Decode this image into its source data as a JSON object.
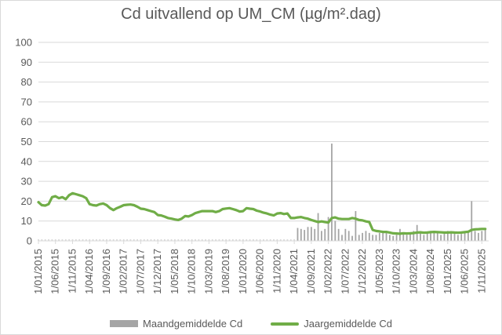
{
  "chart_data": {
    "type": "bar",
    "title": "Cd uitvallend op UM_CM (µg/m².dag)",
    "ylim": [
      0,
      100
    ],
    "y_ticks": [
      0,
      10,
      20,
      30,
      40,
      50,
      60,
      70,
      80,
      90,
      100
    ],
    "x_start": "2015-01",
    "x_end": "2026-01",
    "x_tick_labels": [
      "1/01/2015",
      "1/06/2015",
      "1/11/2015",
      "1/04/2016",
      "1/09/2016",
      "1/02/2017",
      "1/07/2017",
      "1/12/2017",
      "1/05/2018",
      "1/10/2018",
      "1/03/2019",
      "1/08/2019",
      "1/01/2020",
      "1/06/2020",
      "1/11/2020",
      "1/04/2021",
      "1/09/2021",
      "1/02/2022",
      "1/07/2022",
      "1/12/2022",
      "1/05/2023",
      "1/10/2023",
      "1/03/2024",
      "1/08/2024",
      "1/01/2025",
      "1/06/2025",
      "1/11/2025"
    ],
    "grid": true,
    "legend_position": "bottom",
    "series": [
      {
        "name": "Maandgemiddelde Cd",
        "type": "bar",
        "color": "#a5a5a5",
        "points": [
          [
            "2021-05",
            6.5
          ],
          [
            "2021-06",
            6
          ],
          [
            "2021-07",
            5.5
          ],
          [
            "2021-08",
            7
          ],
          [
            "2021-09",
            7
          ],
          [
            "2021-10",
            6
          ],
          [
            "2021-11",
            14
          ],
          [
            "2021-12",
            5
          ],
          [
            "2022-01",
            6
          ],
          [
            "2022-02",
            12
          ],
          [
            "2022-03",
            49
          ],
          [
            "2022-04",
            10
          ],
          [
            "2022-05",
            6
          ],
          [
            "2022-06",
            3
          ],
          [
            "2022-07",
            6
          ],
          [
            "2022-08",
            5
          ],
          [
            "2022-09",
            2.5
          ],
          [
            "2022-10",
            15
          ],
          [
            "2022-11",
            3
          ],
          [
            "2022-12",
            4
          ],
          [
            "2023-01",
            5
          ],
          [
            "2023-02",
            4
          ],
          [
            "2023-03",
            3
          ],
          [
            "2023-04",
            3
          ],
          [
            "2023-05",
            4
          ],
          [
            "2023-06",
            4.5
          ],
          [
            "2023-07",
            4
          ],
          [
            "2023-08",
            3
          ],
          [
            "2023-09",
            2.5
          ],
          [
            "2023-10",
            3
          ],
          [
            "2023-11",
            6
          ],
          [
            "2023-12",
            3.5
          ],
          [
            "2024-01",
            3
          ],
          [
            "2024-02",
            4
          ],
          [
            "2024-03",
            5
          ],
          [
            "2024-04",
            8
          ],
          [
            "2024-05",
            4
          ],
          [
            "2024-06",
            3
          ],
          [
            "2024-07",
            4
          ],
          [
            "2024-08",
            5
          ],
          [
            "2024-09",
            5
          ],
          [
            "2024-10",
            4
          ],
          [
            "2024-11",
            3
          ],
          [
            "2024-12",
            4
          ],
          [
            "2025-01",
            5
          ],
          [
            "2025-02",
            4
          ],
          [
            "2025-03",
            4
          ],
          [
            "2025-04",
            3
          ],
          [
            "2025-05",
            3.5
          ],
          [
            "2025-06",
            4
          ],
          [
            "2025-07",
            4
          ],
          [
            "2025-08",
            20
          ],
          [
            "2025-09",
            5
          ],
          [
            "2025-10",
            4
          ],
          [
            "2025-11",
            5
          ],
          [
            "2025-12",
            6
          ]
        ]
      },
      {
        "name": "Jaargemiddelde Cd",
        "type": "line",
        "color": "#70ad47",
        "points": [
          [
            "2015-01",
            19.5
          ],
          [
            "2015-02",
            18
          ],
          [
            "2015-03",
            17.8
          ],
          [
            "2015-04",
            18.5
          ],
          [
            "2015-05",
            22
          ],
          [
            "2015-06",
            22.5
          ],
          [
            "2015-07",
            21.5
          ],
          [
            "2015-08",
            22
          ],
          [
            "2015-09",
            21
          ],
          [
            "2015-10",
            23
          ],
          [
            "2015-11",
            24
          ],
          [
            "2015-12",
            23.5
          ],
          [
            "2016-01",
            23
          ],
          [
            "2016-02",
            22.5
          ],
          [
            "2016-03",
            21.5
          ],
          [
            "2016-04",
            18.5
          ],
          [
            "2016-05",
            18
          ],
          [
            "2016-06",
            17.8
          ],
          [
            "2016-07",
            18.5
          ],
          [
            "2016-08",
            18.8
          ],
          [
            "2016-09",
            18
          ],
          [
            "2016-10",
            16.5
          ],
          [
            "2016-11",
            15.5
          ],
          [
            "2016-12",
            16.5
          ],
          [
            "2017-01",
            17.2
          ],
          [
            "2017-02",
            18
          ],
          [
            "2017-03",
            18.2
          ],
          [
            "2017-04",
            18.3
          ],
          [
            "2017-05",
            18
          ],
          [
            "2017-06",
            17.2
          ],
          [
            "2017-07",
            16.2
          ],
          [
            "2017-08",
            16
          ],
          [
            "2017-09",
            15.5
          ],
          [
            "2017-10",
            15
          ],
          [
            "2017-11",
            14.5
          ],
          [
            "2017-12",
            13
          ],
          [
            "2018-01",
            12.8
          ],
          [
            "2018-02",
            12.2
          ],
          [
            "2018-03",
            11.5
          ],
          [
            "2018-04",
            11.2
          ],
          [
            "2018-05",
            10.8
          ],
          [
            "2018-06",
            10.5
          ],
          [
            "2018-07",
            11.2
          ],
          [
            "2018-08",
            12.5
          ],
          [
            "2018-09",
            12.3
          ],
          [
            "2018-10",
            13
          ],
          [
            "2018-11",
            14
          ],
          [
            "2018-12",
            14.5
          ],
          [
            "2019-01",
            15
          ],
          [
            "2019-02",
            15
          ],
          [
            "2019-03",
            15
          ],
          [
            "2019-04",
            15
          ],
          [
            "2019-05",
            14.5
          ],
          [
            "2019-06",
            15
          ],
          [
            "2019-07",
            16
          ],
          [
            "2019-08",
            16.3
          ],
          [
            "2019-09",
            16.5
          ],
          [
            "2019-10",
            16
          ],
          [
            "2019-11",
            15.5
          ],
          [
            "2019-12",
            14.8
          ],
          [
            "2020-01",
            15
          ],
          [
            "2020-02",
            16.5
          ],
          [
            "2020-03",
            16.2
          ],
          [
            "2020-04",
            16
          ],
          [
            "2020-05",
            15.2
          ],
          [
            "2020-06",
            14.8
          ],
          [
            "2020-07",
            14.2
          ],
          [
            "2020-08",
            13.8
          ],
          [
            "2020-09",
            13.2
          ],
          [
            "2020-10",
            12.8
          ],
          [
            "2020-11",
            13.8
          ],
          [
            "2020-12",
            14
          ],
          [
            "2021-01",
            13.5
          ],
          [
            "2021-02",
            13.8
          ],
          [
            "2021-03",
            11.5
          ],
          [
            "2021-04",
            11.5
          ],
          [
            "2021-05",
            11.8
          ],
          [
            "2021-06",
            12
          ],
          [
            "2021-07",
            11.5
          ],
          [
            "2021-08",
            11.2
          ],
          [
            "2021-09",
            10.5
          ],
          [
            "2021-10",
            10
          ],
          [
            "2021-11",
            9.5
          ],
          [
            "2021-12",
            9.8
          ],
          [
            "2022-01",
            9.5
          ],
          [
            "2022-02",
            9.2
          ],
          [
            "2022-03",
            11.5
          ],
          [
            "2022-04",
            11.8
          ],
          [
            "2022-05",
            11.2
          ],
          [
            "2022-06",
            11
          ],
          [
            "2022-07",
            11
          ],
          [
            "2022-08",
            11
          ],
          [
            "2022-09",
            11.5
          ],
          [
            "2022-10",
            11.2
          ],
          [
            "2022-11",
            10.5
          ],
          [
            "2022-12",
            10.3
          ],
          [
            "2023-01",
            9.8
          ],
          [
            "2023-02",
            9.5
          ],
          [
            "2023-03",
            5.5
          ],
          [
            "2023-04",
            5
          ],
          [
            "2023-05",
            4.8
          ],
          [
            "2023-06",
            4.5
          ],
          [
            "2023-07",
            4.5
          ],
          [
            "2023-08",
            4.2
          ],
          [
            "2023-09",
            3.8
          ],
          [
            "2023-10",
            3.7
          ],
          [
            "2023-11",
            3.6
          ],
          [
            "2023-12",
            3.8
          ],
          [
            "2024-01",
            3.7
          ],
          [
            "2024-02",
            3.8
          ],
          [
            "2024-03",
            3.9
          ],
          [
            "2024-04",
            4.2
          ],
          [
            "2024-05",
            4.3
          ],
          [
            "2024-06",
            4.1
          ],
          [
            "2024-07",
            4.2
          ],
          [
            "2024-08",
            4.4
          ],
          [
            "2024-09",
            4.5
          ],
          [
            "2024-10",
            4.4
          ],
          [
            "2024-11",
            4.3
          ],
          [
            "2024-12",
            4.2
          ],
          [
            "2025-01",
            4.2
          ],
          [
            "2025-02",
            4.3
          ],
          [
            "2025-03",
            4.2
          ],
          [
            "2025-04",
            4.1
          ],
          [
            "2025-05",
            4.2
          ],
          [
            "2025-06",
            4.4
          ],
          [
            "2025-07",
            4.6
          ],
          [
            "2025-08",
            5.5
          ],
          [
            "2025-09",
            5.8
          ],
          [
            "2025-10",
            5.9
          ],
          [
            "2025-11",
            6
          ],
          [
            "2025-12",
            6
          ]
        ]
      }
    ]
  }
}
